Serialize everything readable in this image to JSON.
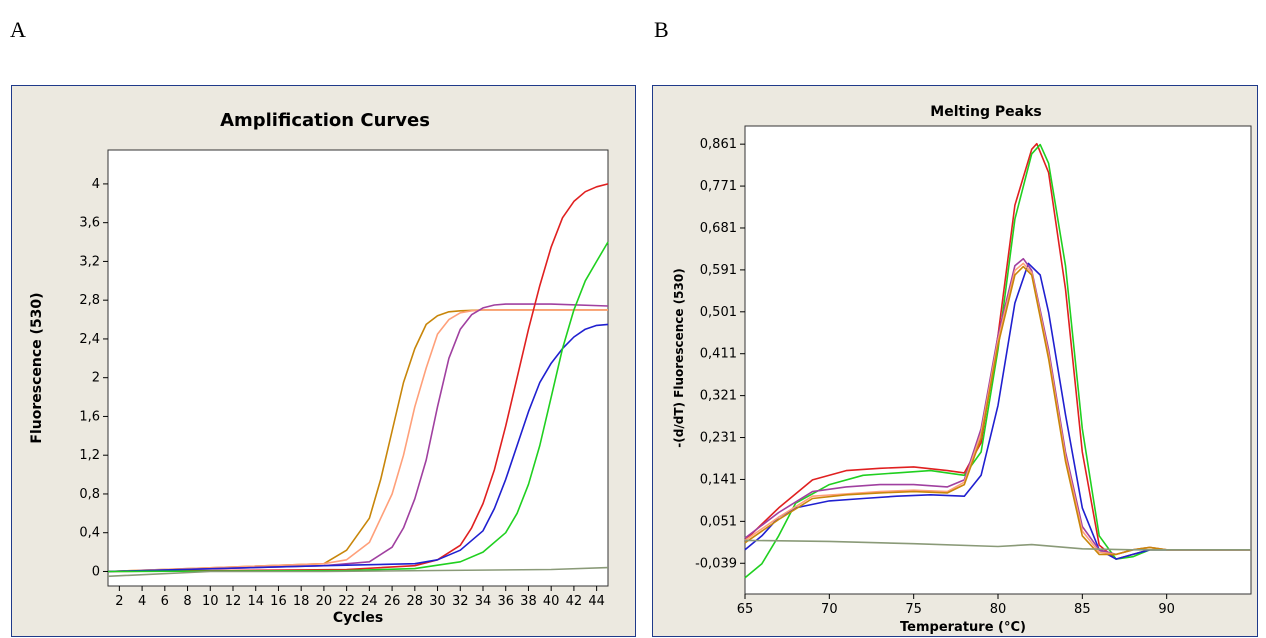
{
  "panels": {
    "a_label": "A",
    "b_label": "B"
  },
  "chart_data": [
    {
      "type": "line",
      "title": "Amplification Curves",
      "xlabel": "Cycles",
      "ylabel": "Fluorescence (530)",
      "xlim": [
        1,
        45
      ],
      "ylim": [
        -0.15,
        4.35
      ],
      "x_ticks": [
        2,
        4,
        6,
        8,
        10,
        12,
        14,
        16,
        18,
        20,
        22,
        24,
        26,
        28,
        30,
        32,
        34,
        36,
        38,
        40,
        42,
        44
      ],
      "y_ticks": [
        0,
        0.4,
        0.8,
        1.2,
        1.6,
        2,
        2.4,
        2.8,
        3.2,
        3.6,
        4
      ],
      "y_tick_labels": [
        "0",
        "0,4",
        "0,8",
        "1,2",
        "1,6",
        "2",
        "2,4",
        "2,8",
        "3,2",
        "3,6",
        "4"
      ],
      "grid": false,
      "series": [
        {
          "color": "#c8860a",
          "x": [
            1,
            20,
            22,
            24,
            25,
            26,
            27,
            28,
            29,
            30,
            31,
            32,
            34,
            36,
            40,
            45
          ],
          "y": [
            0.0,
            0.08,
            0.22,
            0.55,
            0.95,
            1.45,
            1.95,
            2.3,
            2.55,
            2.64,
            2.68,
            2.69,
            2.7,
            2.7,
            2.7,
            2.7
          ]
        },
        {
          "color": "#ffa07a",
          "x": [
            1,
            20,
            22,
            24,
            26,
            27,
            28,
            29,
            30,
            31,
            32,
            33,
            34,
            36,
            40,
            45
          ],
          "y": [
            0.0,
            0.08,
            0.12,
            0.3,
            0.8,
            1.2,
            1.7,
            2.1,
            2.45,
            2.6,
            2.67,
            2.69,
            2.7,
            2.7,
            2.7,
            2.7
          ]
        },
        {
          "color": "#a040a0",
          "x": [
            1,
            20,
            24,
            26,
            27,
            28,
            29,
            30,
            31,
            32,
            33,
            34,
            35,
            36,
            40,
            45
          ],
          "y": [
            0.0,
            0.06,
            0.1,
            0.25,
            0.45,
            0.75,
            1.15,
            1.7,
            2.2,
            2.5,
            2.65,
            2.72,
            2.75,
            2.76,
            2.76,
            2.74
          ]
        },
        {
          "color": "#e02020",
          "x": [
            1,
            22,
            28,
            30,
            32,
            33,
            34,
            35,
            36,
            37,
            38,
            39,
            40,
            41,
            42,
            43,
            44,
            45
          ],
          "y": [
            0.0,
            0.02,
            0.06,
            0.12,
            0.27,
            0.45,
            0.7,
            1.05,
            1.5,
            2.0,
            2.5,
            2.95,
            3.35,
            3.65,
            3.82,
            3.92,
            3.97,
            4.0
          ]
        },
        {
          "color": "#2020d0",
          "x": [
            1,
            20,
            28,
            30,
            32,
            34,
            35,
            36,
            37,
            38,
            39,
            40,
            41,
            42,
            43,
            44,
            45
          ],
          "y": [
            0.0,
            0.06,
            0.08,
            0.12,
            0.22,
            0.42,
            0.65,
            0.95,
            1.3,
            1.65,
            1.95,
            2.15,
            2.3,
            2.42,
            2.5,
            2.54,
            2.55
          ]
        },
        {
          "color": "#20d020",
          "x": [
            1,
            22,
            28,
            32,
            34,
            36,
            37,
            38,
            39,
            40,
            41,
            42,
            43,
            44,
            45
          ],
          "y": [
            0.0,
            0.01,
            0.03,
            0.1,
            0.2,
            0.4,
            0.6,
            0.9,
            1.3,
            1.8,
            2.3,
            2.7,
            3.0,
            3.2,
            3.4
          ]
        },
        {
          "color": "#8a9a78",
          "x": [
            1,
            10,
            20,
            30,
            40,
            45
          ],
          "y": [
            -0.05,
            0.0,
            0.0,
            0.01,
            0.02,
            0.04
          ]
        }
      ]
    },
    {
      "type": "line",
      "title": "Melting Peaks",
      "xlabel": "Temperature (°C)",
      "ylabel": "-(d/dT) Fluorescence (530)",
      "xlim": [
        65,
        95
      ],
      "ylim": [
        -0.105,
        0.9
      ],
      "x_ticks": [
        65,
        70,
        75,
        80,
        85,
        90
      ],
      "y_ticks": [
        -0.039,
        0.051,
        0.141,
        0.231,
        0.321,
        0.411,
        0.501,
        0.591,
        0.681,
        0.771,
        0.861
      ],
      "y_tick_labels": [
        "-0,039",
        "0,051",
        "0,141",
        "0,231",
        "0,321",
        "0,411",
        "0,501",
        "0,591",
        "0,681",
        "0,771",
        "0,861"
      ],
      "grid": false,
      "series": [
        {
          "color": "#e02020",
          "x": [
            65,
            67,
            69,
            71,
            73,
            75,
            77,
            78,
            79,
            80,
            81,
            82,
            82.3,
            83,
            84,
            85,
            86,
            87,
            88,
            89,
            90,
            95
          ],
          "y": [
            0.01,
            0.08,
            0.14,
            0.16,
            0.165,
            0.168,
            0.16,
            0.155,
            0.22,
            0.45,
            0.73,
            0.85,
            0.862,
            0.8,
            0.55,
            0.2,
            0.0,
            -0.03,
            -0.02,
            -0.01,
            -0.01,
            -0.01
          ]
        },
        {
          "color": "#20d020",
          "x": [
            65,
            66,
            67,
            68,
            70,
            72,
            74,
            76,
            78,
            79,
            80,
            81,
            82,
            82.5,
            83,
            84,
            85,
            86,
            87,
            88,
            89,
            90,
            95
          ],
          "y": [
            -0.07,
            -0.04,
            0.02,
            0.09,
            0.13,
            0.15,
            0.155,
            0.16,
            0.15,
            0.2,
            0.42,
            0.7,
            0.84,
            0.86,
            0.82,
            0.6,
            0.25,
            0.02,
            -0.03,
            -0.025,
            -0.01,
            -0.01,
            -0.01
          ]
        },
        {
          "color": "#2020d0",
          "x": [
            65,
            66,
            67,
            68,
            70,
            72,
            74,
            76,
            78,
            79,
            80,
            81,
            81.8,
            82.5,
            83,
            84,
            85,
            86,
            87,
            88,
            89,
            90,
            95
          ],
          "y": [
            -0.01,
            0.02,
            0.06,
            0.08,
            0.095,
            0.1,
            0.105,
            0.108,
            0.105,
            0.15,
            0.3,
            0.52,
            0.605,
            0.58,
            0.5,
            0.28,
            0.08,
            -0.01,
            -0.03,
            -0.02,
            -0.01,
            -0.01,
            -0.01
          ]
        },
        {
          "color": "#a040a0",
          "x": [
            65,
            67,
            69,
            71,
            73,
            75,
            77,
            78,
            79,
            80,
            81,
            81.5,
            82,
            83,
            84,
            85,
            86,
            87,
            88,
            89,
            90,
            95
          ],
          "y": [
            0.015,
            0.07,
            0.115,
            0.125,
            0.13,
            0.13,
            0.125,
            0.14,
            0.25,
            0.45,
            0.6,
            0.615,
            0.59,
            0.42,
            0.2,
            0.04,
            -0.01,
            -0.02,
            -0.01,
            -0.005,
            -0.01,
            -0.01
          ]
        },
        {
          "color": "#ffa07a",
          "x": [
            65,
            67,
            69,
            71,
            73,
            75,
            77,
            78,
            79,
            80,
            81,
            81.5,
            82,
            83,
            84,
            85,
            86,
            87,
            88,
            89,
            90,
            95
          ],
          "y": [
            0.01,
            0.06,
            0.105,
            0.11,
            0.115,
            0.118,
            0.115,
            0.135,
            0.24,
            0.44,
            0.59,
            0.605,
            0.585,
            0.41,
            0.19,
            0.03,
            -0.015,
            -0.02,
            -0.01,
            -0.005,
            -0.01,
            -0.01
          ]
        },
        {
          "color": "#c8860a",
          "x": [
            65,
            67,
            69,
            71,
            73,
            75,
            77,
            78,
            79,
            80,
            81,
            81.5,
            82,
            83,
            84,
            85,
            86,
            87,
            88,
            89,
            90,
            95
          ],
          "y": [
            0.005,
            0.055,
            0.1,
            0.108,
            0.112,
            0.115,
            0.112,
            0.13,
            0.23,
            0.43,
            0.58,
            0.598,
            0.58,
            0.4,
            0.18,
            0.02,
            -0.02,
            -0.02,
            -0.01,
            -0.005,
            -0.01,
            -0.01
          ]
        },
        {
          "color": "#8a9a78",
          "x": [
            65,
            70,
            75,
            80,
            82,
            85,
            88,
            90,
            95
          ],
          "y": [
            0.01,
            0.008,
            0.003,
            -0.003,
            0.001,
            -0.008,
            -0.01,
            -0.01,
            -0.01
          ]
        }
      ]
    }
  ]
}
